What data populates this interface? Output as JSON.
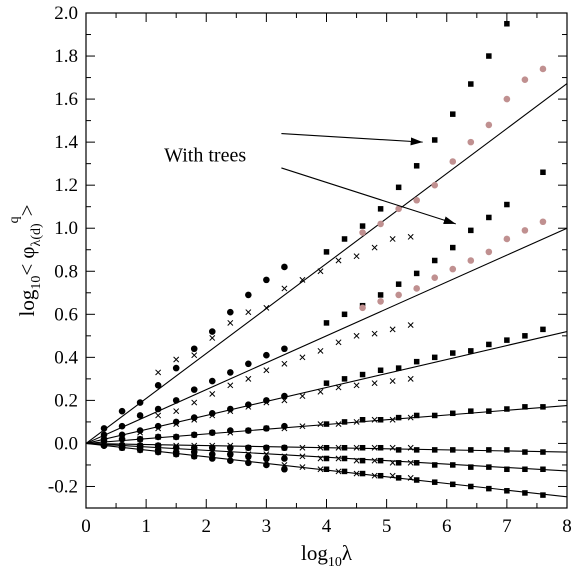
{
  "chart_data": {
    "type": "scatter",
    "xlabel_main": "log",
    "xlabel_sub": "10",
    "xlabel_var": "λ",
    "ylabel_main": "log",
    "ylabel_sub": "10",
    "ylabel_expr": "< φ",
    "ylabel_expr_sub": "λ(d)",
    "ylabel_sup": "q",
    "ylabel_close": ">",
    "xlim": [
      0,
      8
    ],
    "ylim": [
      -0.3,
      2.0
    ],
    "xticks": [
      0,
      1,
      2,
      3,
      4,
      5,
      6,
      7,
      8
    ],
    "xtick_labels": [
      "0",
      "1",
      "2",
      "3",
      "4",
      "5",
      "6",
      "7",
      "8"
    ],
    "yticks": [
      -0.2,
      0,
      0.2,
      0.4,
      0.6,
      0.8,
      1.0,
      1.2,
      1.4,
      1.6,
      1.8,
      2.0
    ],
    "ytick_labels": [
      "-0.2",
      "0.0",
      "0.2",
      "0.4",
      "0.6",
      "0.8",
      "1.0",
      "1.2",
      "1.4",
      "1.6",
      "1.8",
      "2.0"
    ],
    "annotation": "With trees",
    "arrows": [
      {
        "from": [
          3.25,
          1.44
        ],
        "to": [
          5.6,
          1.4
        ]
      },
      {
        "from": [
          3.25,
          1.28
        ],
        "to": [
          6.15,
          1.02
        ]
      }
    ],
    "fit_lines": [
      {
        "slope": 0.209
      },
      {
        "slope": 0.125
      },
      {
        "slope": 0.065
      },
      {
        "slope": 0.022
      },
      {
        "slope": -0.005
      },
      {
        "slope": -0.016
      },
      {
        "slope": -0.031
      }
    ],
    "series": [
      {
        "marker": "circle",
        "color": "#000000",
        "size": 3.3,
        "x": [
          0.3,
          0.6,
          0.9,
          1.2,
          1.5,
          1.8,
          2.1,
          2.4,
          2.7,
          3.0,
          3.3
        ],
        "y": [
          0.07,
          0.15,
          0.19,
          0.27,
          0.35,
          0.44,
          0.52,
          0.61,
          0.69,
          0.76,
          0.82
        ]
      },
      {
        "marker": "cross",
        "color": "#000000",
        "size": 2.6,
        "x": [
          1.2,
          1.5,
          1.8,
          2.1,
          2.4,
          2.7,
          3.0,
          3.3,
          3.6,
          3.9,
          4.2,
          4.5,
          4.8,
          5.1,
          5.4
        ],
        "y": [
          0.33,
          0.39,
          0.41,
          0.49,
          0.56,
          0.61,
          0.63,
          0.72,
          0.76,
          0.8,
          0.85,
          0.87,
          0.91,
          0.95,
          0.96
        ]
      },
      {
        "marker": "square",
        "color": "#000000",
        "size": 5.5,
        "x": [
          4.0,
          4.6,
          5.2,
          5.8,
          6.4,
          7.0
        ],
        "y": [
          0.89,
          1.01,
          1.19,
          1.41,
          1.67,
          1.95
        ]
      },
      {
        "marker": "square",
        "color": "#000000",
        "size": 5.5,
        "x": [
          4.3,
          4.9,
          5.5,
          6.1,
          6.7
        ],
        "y": [
          0.95,
          1.09,
          1.29,
          1.53,
          1.8
        ]
      },
      {
        "marker": "circle",
        "color": "#c09090",
        "size": 3.3,
        "x": [
          4.6,
          4.9,
          5.2,
          5.5,
          5.8,
          6.1,
          6.4,
          6.7,
          7.0,
          7.3,
          7.6
        ],
        "y": [
          0.98,
          1.02,
          1.09,
          1.13,
          1.2,
          1.31,
          1.4,
          1.48,
          1.6,
          1.69,
          1.74
        ]
      },
      {
        "marker": "circle",
        "color": "#000000",
        "size": 3.3,
        "x": [
          0.3,
          0.6,
          0.9,
          1.2,
          1.5,
          1.8,
          2.1,
          2.4,
          2.7,
          3.0,
          3.3
        ],
        "y": [
          0.04,
          0.08,
          0.13,
          0.16,
          0.2,
          0.25,
          0.29,
          0.33,
          0.37,
          0.41,
          0.44
        ]
      },
      {
        "marker": "cross",
        "color": "#000000",
        "size": 2.6,
        "x": [
          1.2,
          1.5,
          1.8,
          2.1,
          2.4,
          2.7,
          3.0,
          3.3,
          3.6,
          3.9,
          4.2,
          4.5,
          4.8,
          5.1,
          5.4
        ],
        "y": [
          0.13,
          0.15,
          0.19,
          0.23,
          0.27,
          0.3,
          0.34,
          0.37,
          0.4,
          0.43,
          0.47,
          0.5,
          0.51,
          0.53,
          0.55
        ]
      },
      {
        "marker": "square",
        "color": "#000000",
        "size": 5.5,
        "x": [
          4.0,
          4.6,
          5.2,
          5.8,
          6.4,
          7.0,
          7.6
        ],
        "y": [
          0.56,
          0.64,
          0.74,
          0.85,
          0.99,
          1.11,
          1.26
        ]
      },
      {
        "marker": "square",
        "color": "#000000",
        "size": 5.5,
        "x": [
          4.3,
          4.9,
          5.5,
          6.1,
          6.7
        ],
        "y": [
          0.6,
          0.69,
          0.79,
          0.91,
          1.05
        ]
      },
      {
        "marker": "circle",
        "color": "#c09090",
        "size": 3.3,
        "x": [
          4.6,
          4.9,
          5.2,
          5.5,
          5.8,
          6.1,
          6.4,
          6.7,
          7.0,
          7.3,
          7.6
        ],
        "y": [
          0.63,
          0.66,
          0.69,
          0.72,
          0.77,
          0.81,
          0.85,
          0.89,
          0.95,
          0.99,
          1.03
        ]
      },
      {
        "marker": "circle",
        "color": "#000000",
        "size": 3.3,
        "x": [
          0.3,
          0.6,
          0.9,
          1.2,
          1.5,
          1.8,
          2.1,
          2.4,
          2.7,
          3.0,
          3.3
        ],
        "y": [
          0.02,
          0.04,
          0.06,
          0.08,
          0.1,
          0.12,
          0.14,
          0.16,
          0.18,
          0.2,
          0.22
        ]
      },
      {
        "marker": "cross",
        "color": "#000000",
        "size": 2.6,
        "x": [
          0.6,
          0.9,
          1.2,
          1.5,
          1.8,
          2.1,
          2.4,
          2.7,
          3.0,
          3.3,
          3.6,
          3.9,
          4.2,
          4.5,
          4.8,
          5.1,
          5.4
        ],
        "y": [
          0.03,
          0.05,
          0.07,
          0.09,
          0.11,
          0.13,
          0.15,
          0.17,
          0.19,
          0.2,
          0.22,
          0.24,
          0.26,
          0.27,
          0.28,
          0.29,
          0.3
        ]
      },
      {
        "marker": "square",
        "color": "#000000",
        "size": 5.5,
        "x": [
          4.0,
          4.3,
          4.6,
          4.9,
          5.2,
          5.5,
          5.8,
          6.1,
          6.4,
          6.7,
          7.0,
          7.3,
          7.6
        ],
        "y": [
          0.28,
          0.3,
          0.32,
          0.34,
          0.35,
          0.38,
          0.4,
          0.42,
          0.43,
          0.46,
          0.48,
          0.5,
          0.53
        ]
      },
      {
        "marker": "circle",
        "color": "#000000",
        "size": 3.3,
        "x": [
          0.3,
          0.6,
          0.9,
          1.2,
          1.5,
          1.8,
          2.1,
          2.4,
          2.7,
          3.0,
          3.3
        ],
        "y": [
          0.01,
          0.02,
          0.02,
          0.03,
          0.03,
          0.04,
          0.05,
          0.06,
          0.06,
          0.07,
          0.08
        ]
      },
      {
        "marker": "cross",
        "color": "#000000",
        "size": 2.6,
        "x": [
          0.6,
          0.9,
          1.2,
          1.5,
          1.8,
          2.1,
          2.4,
          2.7,
          3.0,
          3.3,
          3.6,
          3.9,
          4.2,
          4.5,
          4.8,
          5.1,
          5.4
        ],
        "y": [
          0.01,
          0.02,
          0.03,
          0.03,
          0.04,
          0.05,
          0.05,
          0.06,
          0.07,
          0.07,
          0.08,
          0.09,
          0.09,
          0.1,
          0.11,
          0.11,
          0.12
        ]
      },
      {
        "marker": "square",
        "color": "#000000",
        "size": 5.5,
        "x": [
          4.0,
          4.3,
          4.6,
          4.9,
          5.2,
          5.5,
          5.8,
          6.1,
          6.4,
          6.7,
          7.0,
          7.3,
          7.6
        ],
        "y": [
          0.09,
          0.1,
          0.11,
          0.11,
          0.12,
          0.13,
          0.13,
          0.14,
          0.15,
          0.15,
          0.16,
          0.17,
          0.17
        ]
      },
      {
        "marker": "circle",
        "color": "#000000",
        "size": 3.3,
        "x": [
          0.3,
          0.6,
          0.9,
          1.2,
          1.5,
          1.8,
          2.1,
          2.4,
          2.7,
          3.0,
          3.3
        ],
        "y": [
          -0.01,
          -0.01,
          -0.01,
          -0.01,
          -0.02,
          -0.02,
          -0.02,
          -0.02,
          -0.02,
          -0.02,
          -0.02
        ]
      },
      {
        "marker": "cross",
        "color": "#000000",
        "size": 2.6,
        "x": [
          0.6,
          0.9,
          1.2,
          1.5,
          1.8,
          2.1,
          2.4,
          2.7,
          3.0,
          3.3,
          3.6,
          3.9,
          4.2,
          4.5,
          4.8,
          5.1,
          5.4
        ],
        "y": [
          -0.01,
          -0.01,
          -0.01,
          -0.01,
          -0.01,
          -0.01,
          -0.01,
          -0.02,
          -0.02,
          -0.02,
          -0.02,
          -0.02,
          -0.02,
          -0.02,
          -0.02,
          -0.02,
          -0.02
        ]
      },
      {
        "marker": "square",
        "color": "#000000",
        "size": 5.5,
        "x": [
          4.0,
          4.3,
          4.6,
          4.9,
          5.2,
          5.5,
          5.8,
          6.1,
          6.4,
          6.7,
          7.0,
          7.3,
          7.6
        ],
        "y": [
          -0.02,
          -0.02,
          -0.02,
          -0.02,
          -0.03,
          -0.03,
          -0.03,
          -0.03,
          -0.03,
          -0.03,
          -0.03,
          -0.04,
          -0.04
        ]
      },
      {
        "marker": "circle",
        "color": "#000000",
        "size": 3.3,
        "x": [
          0.3,
          0.6,
          0.9,
          1.2,
          1.5,
          1.8,
          2.1,
          2.4,
          2.7,
          3.0,
          3.3
        ],
        "y": [
          -0.01,
          -0.02,
          -0.02,
          -0.03,
          -0.04,
          -0.04,
          -0.05,
          -0.05,
          -0.06,
          -0.07,
          -0.07
        ]
      },
      {
        "marker": "cross",
        "color": "#000000",
        "size": 2.6,
        "x": [
          0.6,
          0.9,
          1.2,
          1.5,
          1.8,
          2.1,
          2.4,
          2.7,
          3.0,
          3.3,
          3.6,
          3.9,
          4.2,
          4.5,
          4.8,
          5.1,
          5.4
        ],
        "y": [
          -0.01,
          -0.02,
          -0.02,
          -0.03,
          -0.03,
          -0.04,
          -0.04,
          -0.05,
          -0.05,
          -0.06,
          -0.06,
          -0.07,
          -0.07,
          -0.08,
          -0.08,
          -0.09,
          -0.09
        ]
      },
      {
        "marker": "square",
        "color": "#000000",
        "size": 5.5,
        "x": [
          4.0,
          4.3,
          4.6,
          4.9,
          5.2,
          5.5,
          5.8,
          6.1,
          6.4,
          6.7,
          7.0,
          7.3,
          7.6
        ],
        "y": [
          -0.07,
          -0.07,
          -0.08,
          -0.08,
          -0.09,
          -0.09,
          -0.1,
          -0.1,
          -0.11,
          -0.11,
          -0.12,
          -0.12,
          -0.12
        ]
      },
      {
        "marker": "circle",
        "color": "#000000",
        "size": 3.3,
        "x": [
          0.3,
          0.6,
          0.9,
          1.2,
          1.5,
          1.8,
          2.1,
          2.4,
          2.7,
          3.0,
          3.3
        ],
        "y": [
          -0.01,
          -0.02,
          -0.03,
          -0.04,
          -0.05,
          -0.06,
          -0.07,
          -0.08,
          -0.09,
          -0.1,
          -0.12
        ]
      },
      {
        "marker": "cross",
        "color": "#000000",
        "size": 2.6,
        "x": [
          0.6,
          0.9,
          1.2,
          1.5,
          1.8,
          2.1,
          2.4,
          2.7,
          3.0,
          3.3,
          3.6,
          3.9,
          4.2,
          4.5,
          4.8,
          5.1,
          5.4
        ],
        "y": [
          -0.02,
          -0.03,
          -0.04,
          -0.05,
          -0.06,
          -0.06,
          -0.07,
          -0.08,
          -0.09,
          -0.1,
          -0.11,
          -0.12,
          -0.13,
          -0.14,
          -0.15,
          -0.15,
          -0.16
        ]
      },
      {
        "marker": "square",
        "color": "#000000",
        "size": 5.5,
        "x": [
          4.0,
          4.3,
          4.6,
          4.9,
          5.2,
          5.5,
          5.8,
          6.1,
          6.4,
          6.7,
          7.0,
          7.3,
          7.6
        ],
        "y": [
          -0.12,
          -0.13,
          -0.14,
          -0.15,
          -0.16,
          -0.17,
          -0.18,
          -0.19,
          -0.2,
          -0.21,
          -0.22,
          -0.23,
          -0.24
        ]
      }
    ]
  }
}
